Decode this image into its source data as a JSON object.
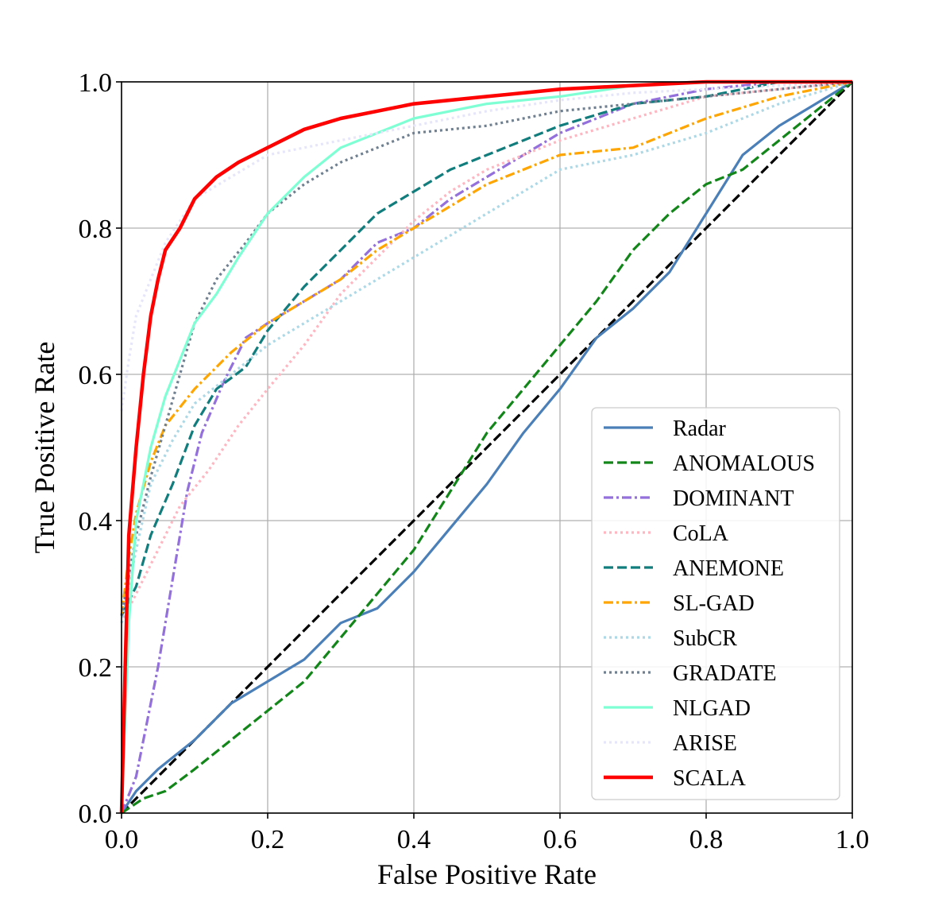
{
  "chart_data": {
    "type": "line",
    "title": "",
    "xlabel": "False Positive Rate",
    "ylabel": "True Positive Rate",
    "xlim": [
      0.0,
      1.0
    ],
    "ylim": [
      0.0,
      1.0
    ],
    "xticks": [
      "0.0",
      "0.2",
      "0.4",
      "0.6",
      "0.8",
      "1.0"
    ],
    "yticks": [
      "0.0",
      "0.2",
      "0.4",
      "0.6",
      "0.8",
      "1.0"
    ],
    "grid": true,
    "legend_position": "lower-right",
    "reference_line": {
      "name": "chance",
      "color": "#000000",
      "dash": "dashed",
      "points": [
        [
          0,
          0
        ],
        [
          1,
          1
        ]
      ]
    },
    "series": [
      {
        "name": "Radar",
        "color": "#4a7fb8",
        "dash": "solid",
        "points": [
          [
            0,
            0
          ],
          [
            0.02,
            0.03
          ],
          [
            0.05,
            0.06
          ],
          [
            0.1,
            0.1
          ],
          [
            0.15,
            0.15
          ],
          [
            0.2,
            0.18
          ],
          [
            0.25,
            0.21
          ],
          [
            0.3,
            0.26
          ],
          [
            0.35,
            0.28
          ],
          [
            0.4,
            0.33
          ],
          [
            0.45,
            0.39
          ],
          [
            0.5,
            0.45
          ],
          [
            0.55,
            0.52
          ],
          [
            0.6,
            0.58
          ],
          [
            0.65,
            0.65
          ],
          [
            0.7,
            0.69
          ],
          [
            0.75,
            0.74
          ],
          [
            0.8,
            0.82
          ],
          [
            0.85,
            0.9
          ],
          [
            0.9,
            0.94
          ],
          [
            0.95,
            0.97
          ],
          [
            1,
            1
          ]
        ]
      },
      {
        "name": "ANOMALOUS",
        "color": "#13861a",
        "dash": "dashed",
        "points": [
          [
            0,
            0
          ],
          [
            0.03,
            0.02
          ],
          [
            0.06,
            0.03
          ],
          [
            0.1,
            0.06
          ],
          [
            0.15,
            0.1
          ],
          [
            0.2,
            0.14
          ],
          [
            0.25,
            0.18
          ],
          [
            0.3,
            0.24
          ],
          [
            0.35,
            0.3
          ],
          [
            0.4,
            0.36
          ],
          [
            0.45,
            0.44
          ],
          [
            0.5,
            0.52
          ],
          [
            0.55,
            0.58
          ],
          [
            0.6,
            0.64
          ],
          [
            0.65,
            0.7
          ],
          [
            0.7,
            0.77
          ],
          [
            0.75,
            0.82
          ],
          [
            0.8,
            0.86
          ],
          [
            0.85,
            0.88
          ],
          [
            0.9,
            0.92
          ],
          [
            0.95,
            0.96
          ],
          [
            1,
            1
          ]
        ]
      },
      {
        "name": "DOMINANT",
        "color": "#9370db",
        "dash": "dashdot",
        "points": [
          [
            0,
            0
          ],
          [
            0.02,
            0.05
          ],
          [
            0.05,
            0.2
          ],
          [
            0.07,
            0.32
          ],
          [
            0.09,
            0.44
          ],
          [
            0.11,
            0.52
          ],
          [
            0.14,
            0.59
          ],
          [
            0.17,
            0.65
          ],
          [
            0.2,
            0.67
          ],
          [
            0.25,
            0.7
          ],
          [
            0.3,
            0.73
          ],
          [
            0.35,
            0.78
          ],
          [
            0.4,
            0.8
          ],
          [
            0.45,
            0.84
          ],
          [
            0.5,
            0.87
          ],
          [
            0.6,
            0.93
          ],
          [
            0.7,
            0.97
          ],
          [
            0.8,
            0.99
          ],
          [
            0.9,
            1.0
          ],
          [
            1,
            1
          ]
        ]
      },
      {
        "name": "CoLA",
        "color": "#ffb6c1",
        "dash": "dotted",
        "points": [
          [
            0,
            0.26
          ],
          [
            0.02,
            0.3
          ],
          [
            0.05,
            0.36
          ],
          [
            0.08,
            0.42
          ],
          [
            0.12,
            0.47
          ],
          [
            0.16,
            0.53
          ],
          [
            0.2,
            0.58
          ],
          [
            0.25,
            0.64
          ],
          [
            0.3,
            0.71
          ],
          [
            0.35,
            0.76
          ],
          [
            0.4,
            0.81
          ],
          [
            0.45,
            0.85
          ],
          [
            0.5,
            0.88
          ],
          [
            0.55,
            0.9
          ],
          [
            0.6,
            0.92
          ],
          [
            0.7,
            0.95
          ],
          [
            0.8,
            0.98
          ],
          [
            0.9,
            0.99
          ],
          [
            1,
            1
          ]
        ]
      },
      {
        "name": "ANEMONE",
        "color": "#127d7d",
        "dash": "dashed",
        "points": [
          [
            0,
            0.27
          ],
          [
            0.02,
            0.31
          ],
          [
            0.04,
            0.38
          ],
          [
            0.07,
            0.45
          ],
          [
            0.1,
            0.53
          ],
          [
            0.13,
            0.58
          ],
          [
            0.17,
            0.61
          ],
          [
            0.2,
            0.66
          ],
          [
            0.25,
            0.72
          ],
          [
            0.3,
            0.77
          ],
          [
            0.35,
            0.82
          ],
          [
            0.4,
            0.85
          ],
          [
            0.45,
            0.88
          ],
          [
            0.5,
            0.9
          ],
          [
            0.55,
            0.92
          ],
          [
            0.6,
            0.94
          ],
          [
            0.7,
            0.97
          ],
          [
            0.8,
            0.98
          ],
          [
            0.9,
            1.0
          ],
          [
            1,
            1
          ]
        ]
      },
      {
        "name": "SL-GAD",
        "color": "#ffa500",
        "dash": "dashdot",
        "points": [
          [
            0,
            0.27
          ],
          [
            0.01,
            0.35
          ],
          [
            0.02,
            0.41
          ],
          [
            0.04,
            0.48
          ],
          [
            0.06,
            0.53
          ],
          [
            0.1,
            0.58
          ],
          [
            0.15,
            0.63
          ],
          [
            0.2,
            0.67
          ],
          [
            0.25,
            0.7
          ],
          [
            0.3,
            0.73
          ],
          [
            0.35,
            0.77
          ],
          [
            0.4,
            0.8
          ],
          [
            0.45,
            0.83
          ],
          [
            0.5,
            0.86
          ],
          [
            0.55,
            0.88
          ],
          [
            0.6,
            0.9
          ],
          [
            0.7,
            0.91
          ],
          [
            0.8,
            0.95
          ],
          [
            0.9,
            0.98
          ],
          [
            1,
            1
          ]
        ]
      },
      {
        "name": "SubCR",
        "color": "#add8e6",
        "dash": "dotted",
        "points": [
          [
            0,
            0.26
          ],
          [
            0.02,
            0.36
          ],
          [
            0.04,
            0.45
          ],
          [
            0.07,
            0.51
          ],
          [
            0.1,
            0.56
          ],
          [
            0.15,
            0.6
          ],
          [
            0.2,
            0.64
          ],
          [
            0.25,
            0.67
          ],
          [
            0.3,
            0.7
          ],
          [
            0.35,
            0.73
          ],
          [
            0.4,
            0.76
          ],
          [
            0.45,
            0.79
          ],
          [
            0.5,
            0.82
          ],
          [
            0.55,
            0.85
          ],
          [
            0.6,
            0.88
          ],
          [
            0.7,
            0.9
          ],
          [
            0.8,
            0.93
          ],
          [
            0.85,
            0.95
          ],
          [
            0.9,
            0.97
          ],
          [
            1,
            1
          ]
        ]
      },
      {
        "name": "GRADATE",
        "color": "#708090",
        "dash": "dotted",
        "points": [
          [
            0,
            0.27
          ],
          [
            0.02,
            0.38
          ],
          [
            0.04,
            0.46
          ],
          [
            0.06,
            0.53
          ],
          [
            0.08,
            0.6
          ],
          [
            0.1,
            0.67
          ],
          [
            0.13,
            0.73
          ],
          [
            0.17,
            0.78
          ],
          [
            0.2,
            0.82
          ],
          [
            0.25,
            0.86
          ],
          [
            0.3,
            0.89
          ],
          [
            0.35,
            0.91
          ],
          [
            0.4,
            0.93
          ],
          [
            0.5,
            0.94
          ],
          [
            0.6,
            0.96
          ],
          [
            0.7,
            0.97
          ],
          [
            0.8,
            0.98
          ],
          [
            0.9,
            0.99
          ],
          [
            1,
            1
          ]
        ]
      },
      {
        "name": "NLGAD",
        "color": "#7fffd4",
        "dash": "solid",
        "points": [
          [
            0,
            0
          ],
          [
            0.01,
            0.26
          ],
          [
            0.02,
            0.4
          ],
          [
            0.04,
            0.5
          ],
          [
            0.06,
            0.57
          ],
          [
            0.08,
            0.62
          ],
          [
            0.1,
            0.67
          ],
          [
            0.13,
            0.71
          ],
          [
            0.16,
            0.76
          ],
          [
            0.2,
            0.82
          ],
          [
            0.25,
            0.87
          ],
          [
            0.3,
            0.91
          ],
          [
            0.35,
            0.93
          ],
          [
            0.4,
            0.95
          ],
          [
            0.5,
            0.97
          ],
          [
            0.6,
            0.98
          ],
          [
            0.7,
            0.995
          ],
          [
            0.8,
            1.0
          ],
          [
            1,
            1
          ]
        ]
      },
      {
        "name": "ARISE",
        "color": "#e6e6fa",
        "dash": "dotted",
        "points": [
          [
            0,
            0.55
          ],
          [
            0.01,
            0.62
          ],
          [
            0.02,
            0.68
          ],
          [
            0.04,
            0.73
          ],
          [
            0.06,
            0.78
          ],
          [
            0.08,
            0.81
          ],
          [
            0.1,
            0.84
          ],
          [
            0.15,
            0.87
          ],
          [
            0.2,
            0.9
          ],
          [
            0.25,
            0.91
          ],
          [
            0.3,
            0.92
          ],
          [
            0.35,
            0.93
          ],
          [
            0.4,
            0.94
          ],
          [
            0.5,
            0.96
          ],
          [
            0.6,
            0.975
          ],
          [
            0.7,
            0.985
          ],
          [
            0.8,
            0.99
          ],
          [
            0.9,
            0.995
          ],
          [
            1,
            1
          ]
        ]
      },
      {
        "name": "SCALA",
        "color": "#ff0000",
        "dash": "solid",
        "points": [
          [
            0,
            0
          ],
          [
            0.005,
            0.2
          ],
          [
            0.01,
            0.38
          ],
          [
            0.02,
            0.5
          ],
          [
            0.03,
            0.6
          ],
          [
            0.04,
            0.68
          ],
          [
            0.05,
            0.73
          ],
          [
            0.06,
            0.77
          ],
          [
            0.08,
            0.8
          ],
          [
            0.1,
            0.84
          ],
          [
            0.13,
            0.87
          ],
          [
            0.16,
            0.89
          ],
          [
            0.2,
            0.91
          ],
          [
            0.25,
            0.935
          ],
          [
            0.3,
            0.95
          ],
          [
            0.35,
            0.96
          ],
          [
            0.4,
            0.97
          ],
          [
            0.5,
            0.98
          ],
          [
            0.6,
            0.99
          ],
          [
            0.7,
            0.995
          ],
          [
            0.8,
            1.0
          ],
          [
            1,
            1
          ]
        ]
      }
    ]
  }
}
